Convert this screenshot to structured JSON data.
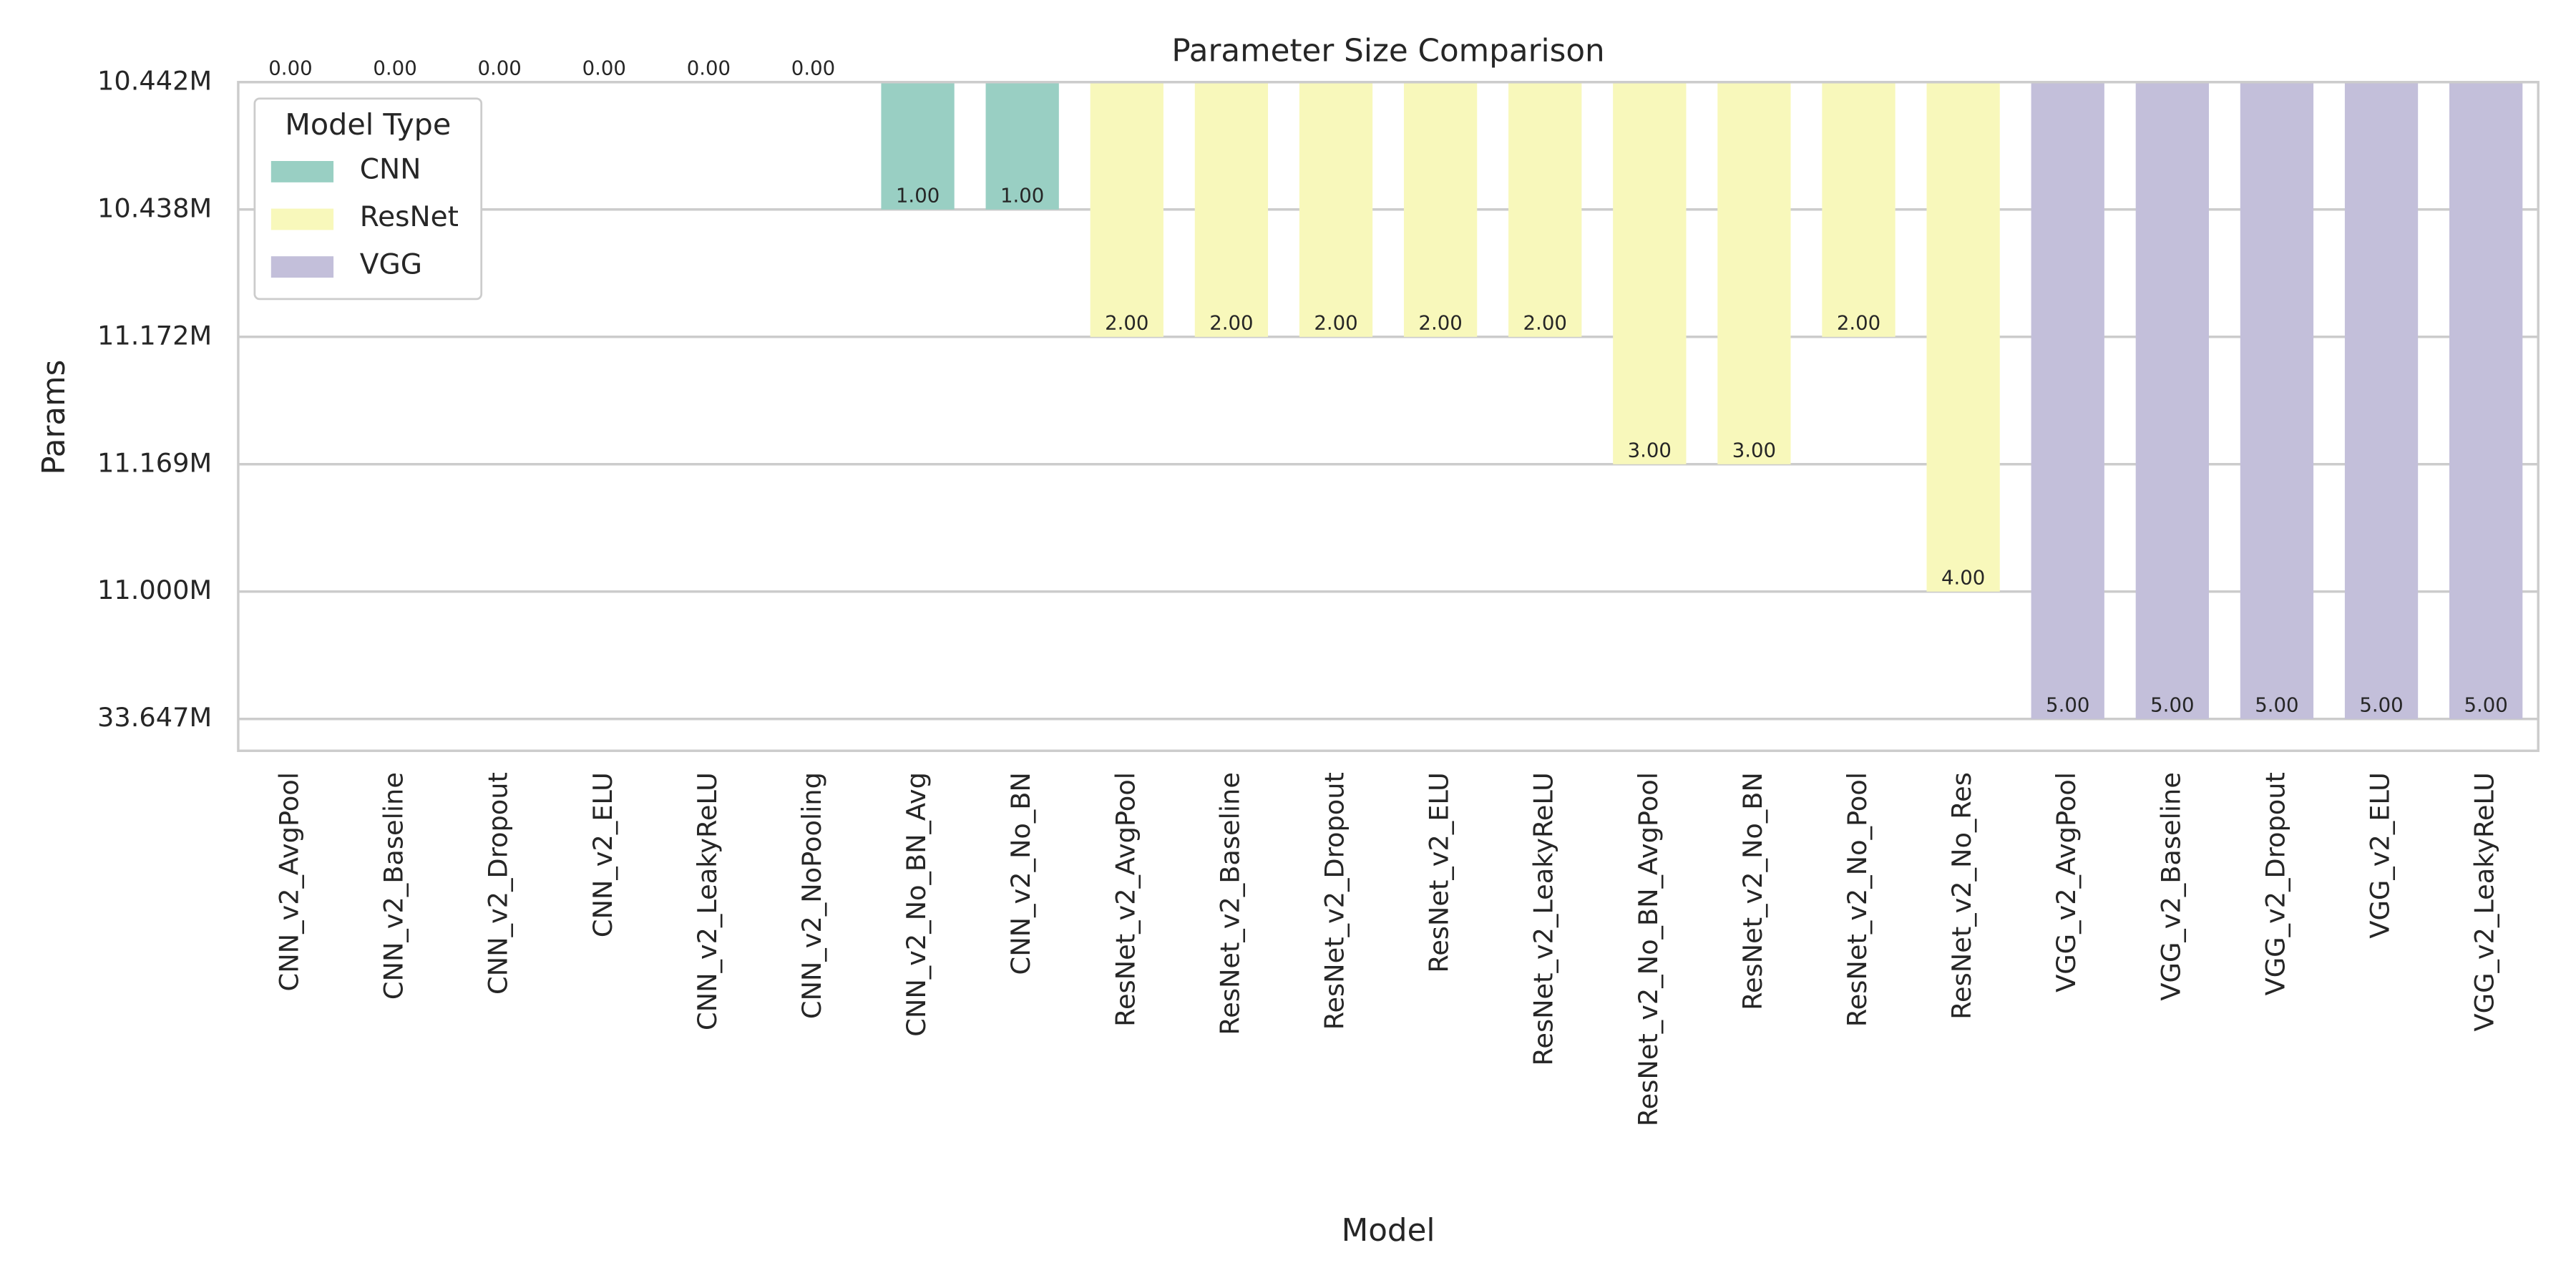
{
  "chart_data": {
    "type": "bar",
    "title": "Parameter Size Comparison",
    "x_label": "Model",
    "y_label": "Params",
    "categories": [
      "CNN_v2_AvgPool",
      "CNN_v2_Baseline",
      "CNN_v2_Dropout",
      "CNN_v2_ELU",
      "CNN_v2_LeakyReLU",
      "CNN_v2_NoPooling",
      "CNN_v2_No_BN_Avg",
      "CNN_v2_No_BN",
      "ResNet_v2_AvgPool",
      "ResNet_v2_Baseline",
      "ResNet_v2_Dropout",
      "ResNet_v2_ELU",
      "ResNet_v2_LeakyReLU",
      "ResNet_v2_No_BN_AvgPool",
      "ResNet_v2_No_BN",
      "ResNet_v2_No_Pool",
      "ResNet_v2_No_Res",
      "VGG_v2_AvgPool",
      "VGG_v2_Baseline",
      "VGG_v2_Dropout",
      "VGG_v2_ELU",
      "VGG_v2_LeakyReLU"
    ],
    "series": [
      {
        "name": "CNN",
        "color": "#99cfc3",
        "values": [
          0,
          0,
          0,
          0,
          0,
          0,
          1,
          1,
          null,
          null,
          null,
          null,
          null,
          null,
          null,
          null,
          null,
          null,
          null,
          null,
          null,
          null
        ],
        "value_labels": [
          "0.00",
          "0.00",
          "0.00",
          "0.00",
          "0.00",
          "0.00",
          "1.00",
          "1.00",
          null,
          null,
          null,
          null,
          null,
          null,
          null,
          null,
          null,
          null,
          null,
          null,
          null,
          null
        ]
      },
      {
        "name": "ResNet",
        "color": "#f8f8bb",
        "values": [
          null,
          null,
          null,
          null,
          null,
          null,
          null,
          null,
          2,
          2,
          2,
          2,
          2,
          3,
          3,
          2,
          4,
          null,
          null,
          null,
          null,
          null
        ],
        "value_labels": [
          null,
          null,
          null,
          null,
          null,
          null,
          null,
          null,
          "2.00",
          "2.00",
          "2.00",
          "2.00",
          "2.00",
          "3.00",
          "3.00",
          "2.00",
          "4.00",
          null,
          null,
          null,
          null,
          null
        ]
      },
      {
        "name": "VGG",
        "color": "#c3bfda",
        "values": [
          null,
          null,
          null,
          null,
          null,
          null,
          null,
          null,
          null,
          null,
          null,
          null,
          null,
          null,
          null,
          null,
          null,
          5,
          5,
          5,
          5,
          5
        ],
        "value_labels": [
          null,
          null,
          null,
          null,
          null,
          null,
          null,
          null,
          null,
          null,
          null,
          null,
          null,
          null,
          null,
          null,
          null,
          "5.00",
          "5.00",
          "5.00",
          "5.00",
          "5.00"
        ]
      }
    ],
    "legend_title": "Model Type",
    "legend_loc": "upper left",
    "ylim": [
      0,
      5.25
    ],
    "y_inverted": true,
    "yticks": [
      {
        "value": 0,
        "label": "10.442M"
      },
      {
        "value": 1,
        "label": "10.438M"
      },
      {
        "value": 2,
        "label": "11.172M"
      },
      {
        "value": 3,
        "label": "11.169M"
      },
      {
        "value": 4,
        "label": "11.000M"
      },
      {
        "value": 5,
        "label": "33.647M"
      }
    ],
    "grid": true
  }
}
